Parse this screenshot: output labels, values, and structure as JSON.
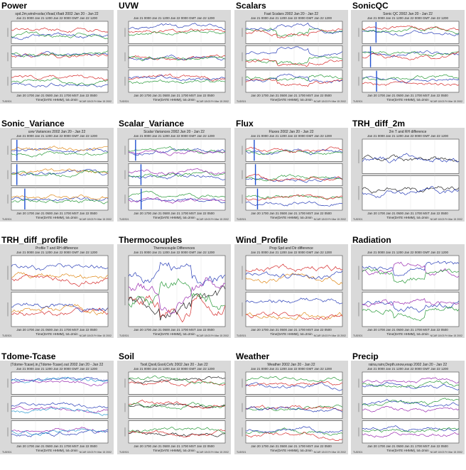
{
  "panels": [
    {
      "id": "power",
      "label": "Power",
      "title": "spd.2m,wind+solar,Vload,Vbatt 2002 Jan 20 - Jan 22",
      "time_top": "Jan 21 0000    Jan 21 1200    Jan 22 0000 GMT    Jan 22 1200",
      "time_bottom": "Jan 20 1700    Jan 21 0500    Jan 21 1700 MST    Jan 22 0500",
      "x_label": "Time(DATE HHMM), txt=2min",
      "foot_left": "TUDS01",
      "foot_right": "NCAR 18:03 Fri Mar 15 2002",
      "colors": [
        "#d62b2b",
        "#2a3fb8",
        "#2a9a3a",
        "#9a2bb0"
      ]
    },
    {
      "id": "uvw",
      "label": "UVW",
      "title": "",
      "time_top": "Jan 21 0000    Jan 21 1200    Jan 22 0000 GMT    Jan 22 1200",
      "time_bottom": "Jan 20 1700    Jan 21 0500    Jan 21 1700 MST    Jan 22 0500",
      "x_label": "Time(DATE HHMM), txt=2min",
      "foot_left": "TUDS01",
      "foot_right": "NCAR 18:03 Fri Mar 15 2002",
      "colors": [
        "#d62b2b",
        "#2a3fb8",
        "#2a9a3a",
        "#e08a1a",
        "#9a2bb0"
      ]
    },
    {
      "id": "scalars",
      "label": "Scalars",
      "title": "Fast Scalars 2002 Jan 20 - Jan 22",
      "time_top": "Jan 21 0000    Jan 21 1200    Jan 22 0000 GMT    Jan 22 1200",
      "time_bottom": "Jan 20 1700    Jan 21 0500    Jan 21 1700 MST    Jan 22 0500",
      "x_label": "Time(DATE HHMM), txt=2min",
      "foot_left": "TUDS01",
      "foot_right": "NCAR 18:03 Fri Mar 15 2002",
      "colors": [
        "#2a9a3a",
        "#2a3fb8",
        "#d62b2b",
        "#9a2bb0"
      ]
    },
    {
      "id": "sonicqc",
      "label": "SonicQC",
      "title": "Sonic QC 2002 Jan 20 - Jan 22",
      "time_top": "Jan 21 0000    Jan 21 1200    Jan 22 0000 GMT    Jan 22 1200",
      "time_bottom": "Jan 20 1700    Jan 21 0500    Jan 21 1700 MST    Jan 22 0500",
      "x_label": "Time(DATE HHMM), txt=2min",
      "foot_left": "TUDS01",
      "foot_right": "NCAR 18:03 Fri Mar 15 2002",
      "colors": [
        "#2a3fb8",
        "#2a9a3a",
        "#d62b2b"
      ]
    },
    {
      "id": "sonic_variance",
      "label": "Sonic_Variance",
      "title": "uvw Variances 2002 Jan 20 - Jan 22",
      "time_top": "Jan 21 0000    Jan 21 1200    Jan 22 0000 GMT    Jan 22 1200",
      "time_bottom": "Jan 20 1700    Jan 21 0500    Jan 21 1700 MST    Jan 22 0500",
      "x_label": "Time(DATE HHMM), txt=2min",
      "foot_left": "TUDS01",
      "foot_right": "NCAR 18:03 Fri Mar 15 2002",
      "colors": [
        "#2a3fb8",
        "#e08a1a",
        "#2a9a3a",
        "#d62b2b"
      ]
    },
    {
      "id": "scalar_variance",
      "label": "Scalar_Variance",
      "title": "Scalar Variances 2002 Jan 20 - Jan 22",
      "time_top": "Jan 21 0000    Jan 21 1200    Jan 22 0000 GMT    Jan 22 1200",
      "time_bottom": "Jan 20 1700    Jan 21 0500    Jan 21 1700 MST    Jan 22 0500",
      "x_label": "Time(DATE HHMM), txt=2min",
      "foot_left": "TUDS01",
      "foot_right": "NCAR 18:03 Fri Mar 15 2002",
      "colors": [
        "#2a3fb8",
        "#2a9a3a",
        "#9a2bb0",
        "#d62b2b"
      ]
    },
    {
      "id": "flux",
      "label": "Flux",
      "title": "Fluxes 2002 Jan 20 - Jan 22",
      "time_top": "Jan 21 0000    Jan 21 1200    Jan 22 0000 GMT    Jan 22 1200",
      "time_bottom": "Jan 20 1700    Jan 21 0500    Jan 21 1700 MST    Jan 22 0500",
      "x_label": "Time(DATE HHMM), txt=2min",
      "foot_left": "TUDS01",
      "foot_right": "NCAR 18:03 Fri Mar 15 2002",
      "colors": [
        "#2a3fb8",
        "#2a9a3a",
        "#d62b2b",
        "#e08a1a",
        "#9a2bb0"
      ]
    },
    {
      "id": "trh_diff_2m",
      "label": "TRH_diff_2m",
      "title": "2m T and RH difference",
      "time_top": "Jan 21 0000    Jan 21 1200    Jan 22 0000 GMT    Jan 22 1200",
      "time_bottom": "Jan 20 1700    Jan 21 0500    Jan 21 1700 MST    Jan 22 0500",
      "x_label": "Time(DATE HHMM), txt=2min",
      "foot_left": "TUDS01",
      "foot_right": "NCAR 18:03 Fri Mar 15 2002",
      "colors": [
        "#222222",
        "#2a3fb8"
      ]
    },
    {
      "id": "trh_diff_profile",
      "label": "TRH_diff_profile",
      "title": "Profile T and RH difference",
      "time_top": "Jan 21 0000    Jan 21 1200    Jan 22 0000 GMT    Jan 22 1200",
      "time_bottom": "Jan 20 1700    Jan 21 0500    Jan 21 1700 MST    Jan 22 0500",
      "x_label": "Time(DATE HHMM), txt=2min",
      "foot_left": "TUDS01",
      "foot_right": "NCAR 18:03 Fri Mar 15 2002",
      "colors": [
        "#e08a1a",
        "#d62b2b",
        "#2a3fb8",
        "#222222"
      ]
    },
    {
      "id": "thermocouples",
      "label": "Thermocouples",
      "title": "Thermocouple Differences",
      "time_top": "Jan 21 0000    Jan 21 1200    Jan 22 0000 GMT    Jan 22 1200",
      "time_bottom": "Jan 20 1700    Jan 21 0500    Jan 21 1700 MST    Jan 22 0500",
      "x_label": "Time(DATE HHMM), txt=2min",
      "foot_left": "TUDS01",
      "foot_right": "NCAR 18:03 Fri Mar 15 2002",
      "colors": [
        "#d62b2b",
        "#2a3fb8",
        "#222222",
        "#2a9a3a",
        "#9a2bb0"
      ]
    },
    {
      "id": "wind_profile",
      "label": "Wind_Profile",
      "title": "Prop Spd and Dir difference",
      "time_top": "Jan 21 0000    Jan 21 1200    Jan 22 0000 GMT    Jan 22 1200",
      "time_bottom": "Jan 20 1700    Jan 21 0500    Jan 21 1700 MST    Jan 22 0500",
      "x_label": "Time(DATE HHMM), txt=2min",
      "foot_left": "TUDS01",
      "foot_right": "NCAR 18:03 Fri Mar 15 2002",
      "colors": [
        "#e08a1a",
        "#d62b2b",
        "#2a3fb8",
        "#222222",
        "#2a9a3a"
      ]
    },
    {
      "id": "radiation",
      "label": "Radiation",
      "title": "",
      "time_top": "Jan 21 0000    Jan 21 1200    Jan 22 0000 GMT    Jan 22 1200",
      "time_bottom": "Jan 20 1700    Jan 21 0500    Jan 21 1700 MST    Jan 22 0500",
      "x_label": "Time(DATE HHMM), txt=2min",
      "foot_left": "TUDS01",
      "foot_right": "NCAR 18:03 Fri Mar 15 2002",
      "colors": [
        "#2a3fb8",
        "#9a2bb0",
        "#2a9a3a",
        "#d62b2b"
      ]
    },
    {
      "id": "tdome_tcase",
      "label": "Tdome-Tcase",
      "title": "(Tdome-Tcase).in,(Tdome-Tcase).out 2002 Jan 20 - Jan 22",
      "time_top": "Jan 21 0000    Jan 21 1200    Jan 22 0000 GMT    Jan 22 1200",
      "time_bottom": "Jan 20 1700    Jan 21 0500    Jan 21 1700 MST    Jan 22 0500",
      "x_label": "Time(DATE HHMM), txt=2min",
      "foot_left": "TUDS01",
      "foot_right": "NCAR 18:03 Fri Mar 15 2002",
      "colors": [
        "#2a3fb8",
        "#9a2bb0",
        "#2a9ad0"
      ]
    },
    {
      "id": "soil",
      "label": "Soil",
      "title": "Tsoil,Qsoil,Gsoil,Cvfc 2002 Jan 20 - Jan 22",
      "time_top": "Jan 21 0000    Jan 21 1200    Jan 22 0000 GMT    Jan 22 1200",
      "time_bottom": "Jan 20 1700    Jan 21 0500    Jan 21 1700 MST    Jan 22 0500",
      "x_label": "Time(DATE HHMM), txt=2min",
      "foot_left": "TUDS01",
      "foot_right": "NCAR 18:03 Fri Mar 15 2002",
      "colors": [
        "#222222",
        "#d62b2b",
        "#2a9a3a",
        "#2a3fb8"
      ]
    },
    {
      "id": "weather",
      "label": "Weather",
      "title": "Weather 2002 Jan 20 - Jan 22",
      "time_top": "Jan 21 0000    Jan 21 1200    Jan 22 0000 GMT    Jan 22 1200",
      "time_bottom": "Jan 20 1700    Jan 21 0500    Jan 21 1700 MST    Jan 22 0500",
      "x_label": "Time(DATE HHMM), txt=2min",
      "foot_left": "TUDS01",
      "foot_right": "NCAR 18:03 Fri Mar 15 2002",
      "colors": [
        "#2a9a3a",
        "#d62b2b",
        "#2a3fb8",
        "#9a2bb0"
      ]
    },
    {
      "id": "precip",
      "label": "Precip",
      "title": "raina,rainr,Depth.snow,exap 2002 Jan 20 - Jan 22",
      "time_top": "Jan 21 0000    Jan 21 1200    Jan 22 0000 GMT    Jan 22 1200",
      "time_bottom": "Jan 20 1700    Jan 21 0500    Jan 21 1700 MST    Jan 22 0500",
      "x_label": "Time(DATE HHMM), txt=2min",
      "foot_left": "TUDS01",
      "foot_right": "NCAR 18:03 Fri Mar 15 2002",
      "colors": [
        "#9a2bb0",
        "#2a3fb8",
        "#2a9a3a",
        "#d62b2b"
      ]
    }
  ],
  "theme": {
    "thumb_bg": "#d9d9d9",
    "plot_bg": "#ffffff",
    "axis": "#555555"
  }
}
